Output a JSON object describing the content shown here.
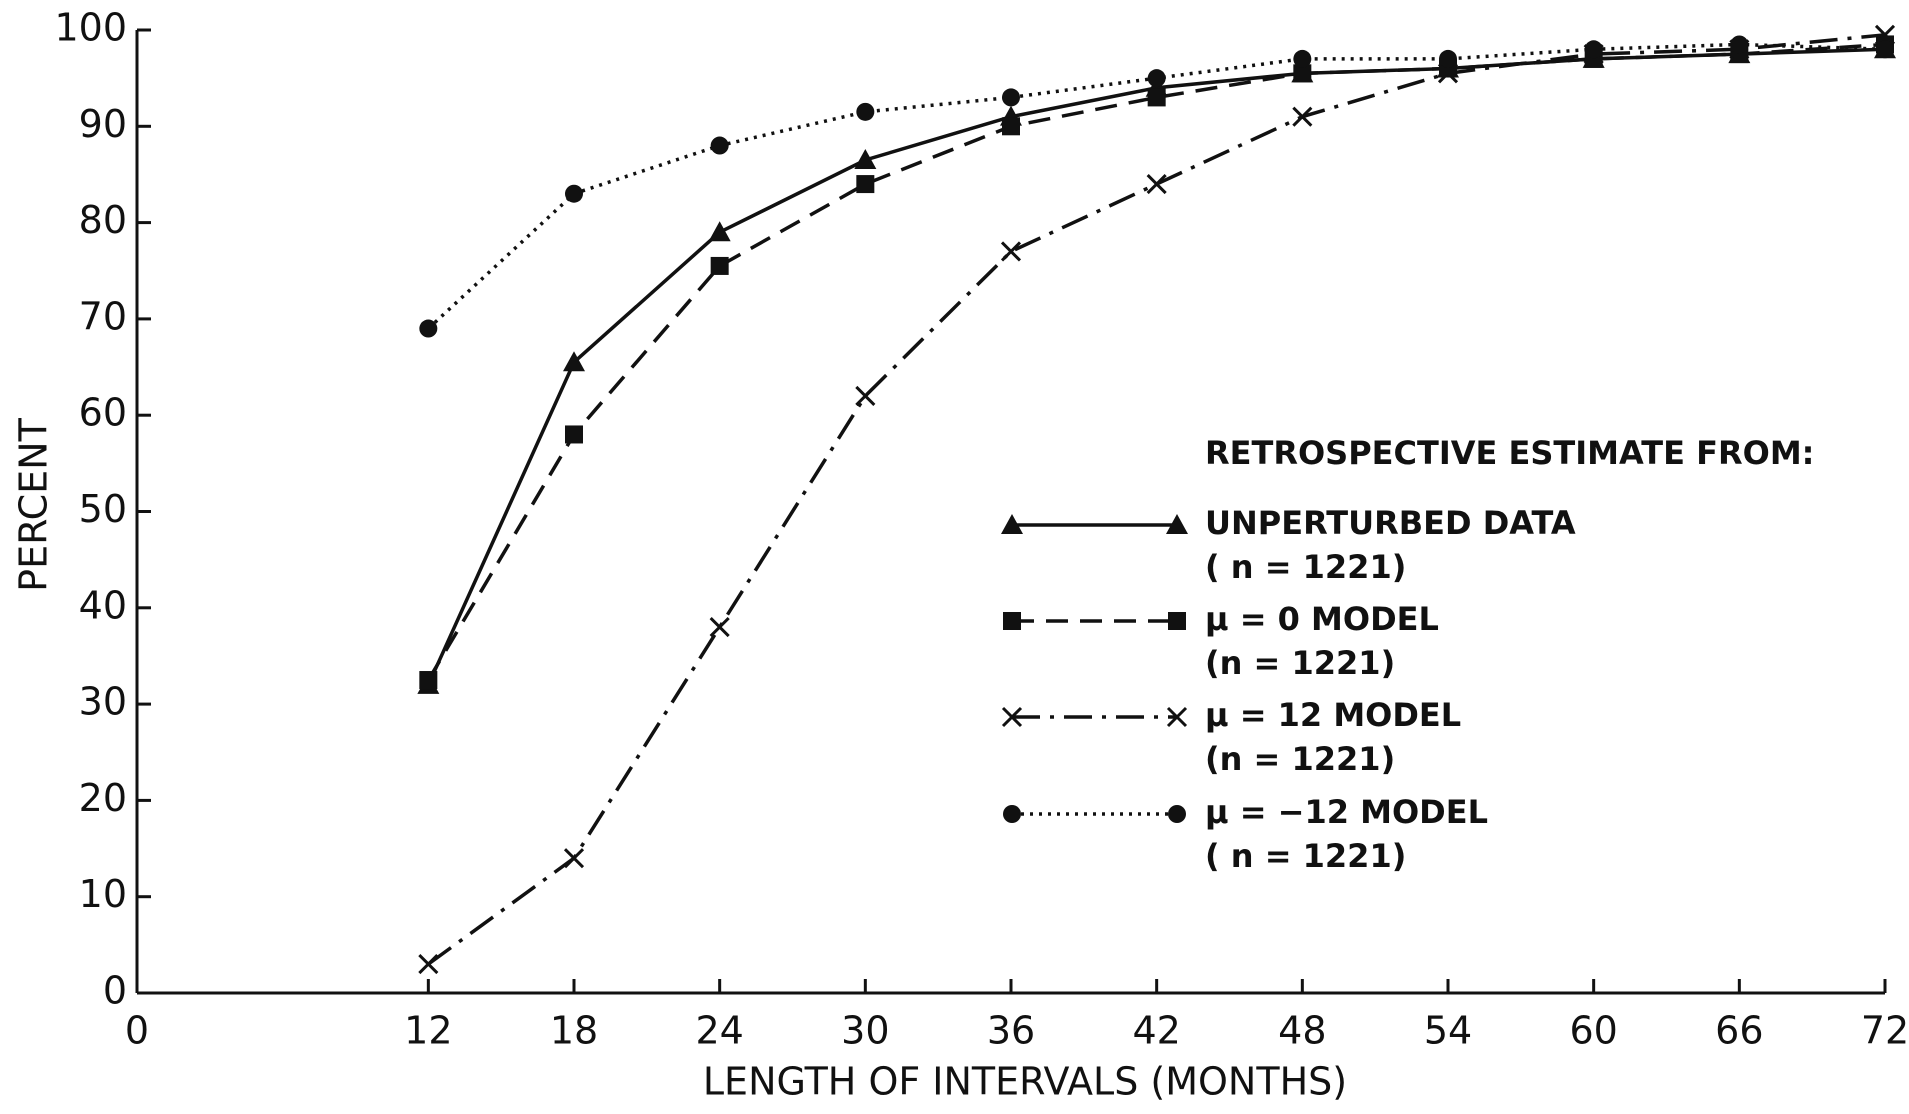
{
  "chart_data": {
    "type": "line",
    "xlabel": "LENGTH OF INTERVALS (MONTHS)",
    "ylabel": "PERCENT",
    "legend_title": "RETROSPECTIVE ESTIMATE FROM:",
    "x": [
      12,
      18,
      24,
      30,
      36,
      42,
      48,
      54,
      60,
      66,
      72
    ],
    "series": [
      {
        "name": "UNPERTURBED  DATA",
        "note": "( n = 1221)",
        "color": "#111111",
        "marker": "triangle",
        "dash": "solid",
        "values": [
          32,
          65.5,
          79,
          86.5,
          91,
          94,
          95.5,
          96,
          97,
          97.5,
          98
        ]
      },
      {
        "name": "μ = 0  MODEL",
        "note": "(n = 1221)",
        "color": "#111111",
        "marker": "square",
        "dash": "dashed",
        "values": [
          32.5,
          58,
          75.5,
          84,
          90,
          93,
          95.5,
          96,
          97,
          97.5,
          98.5
        ]
      },
      {
        "name": "μ = 12  MODEL",
        "note": "(n = 1221)",
        "color": "#111111",
        "marker": "x",
        "dash": "dashdot",
        "values": [
          3,
          14,
          38,
          62,
          77,
          84,
          91,
          95.5,
          97.5,
          98,
          99.5
        ]
      },
      {
        "name": "μ = −12  MODEL",
        "note": "( n = 1221)",
        "color": "#111111",
        "marker": "circle",
        "dash": "dotted",
        "values": [
          69,
          83,
          88,
          91.5,
          93,
          95,
          97,
          97,
          98,
          98.5,
          98
        ]
      }
    ],
    "xlim": [
      0,
      72
    ],
    "xticks": [
      0,
      12,
      18,
      24,
      30,
      36,
      42,
      48,
      54,
      60,
      66,
      72
    ],
    "ylim": [
      0,
      100
    ],
    "yticks": [
      0,
      10,
      20,
      30,
      40,
      50,
      60,
      70,
      80,
      90,
      100
    ],
    "grid": false,
    "legend": "right"
  }
}
